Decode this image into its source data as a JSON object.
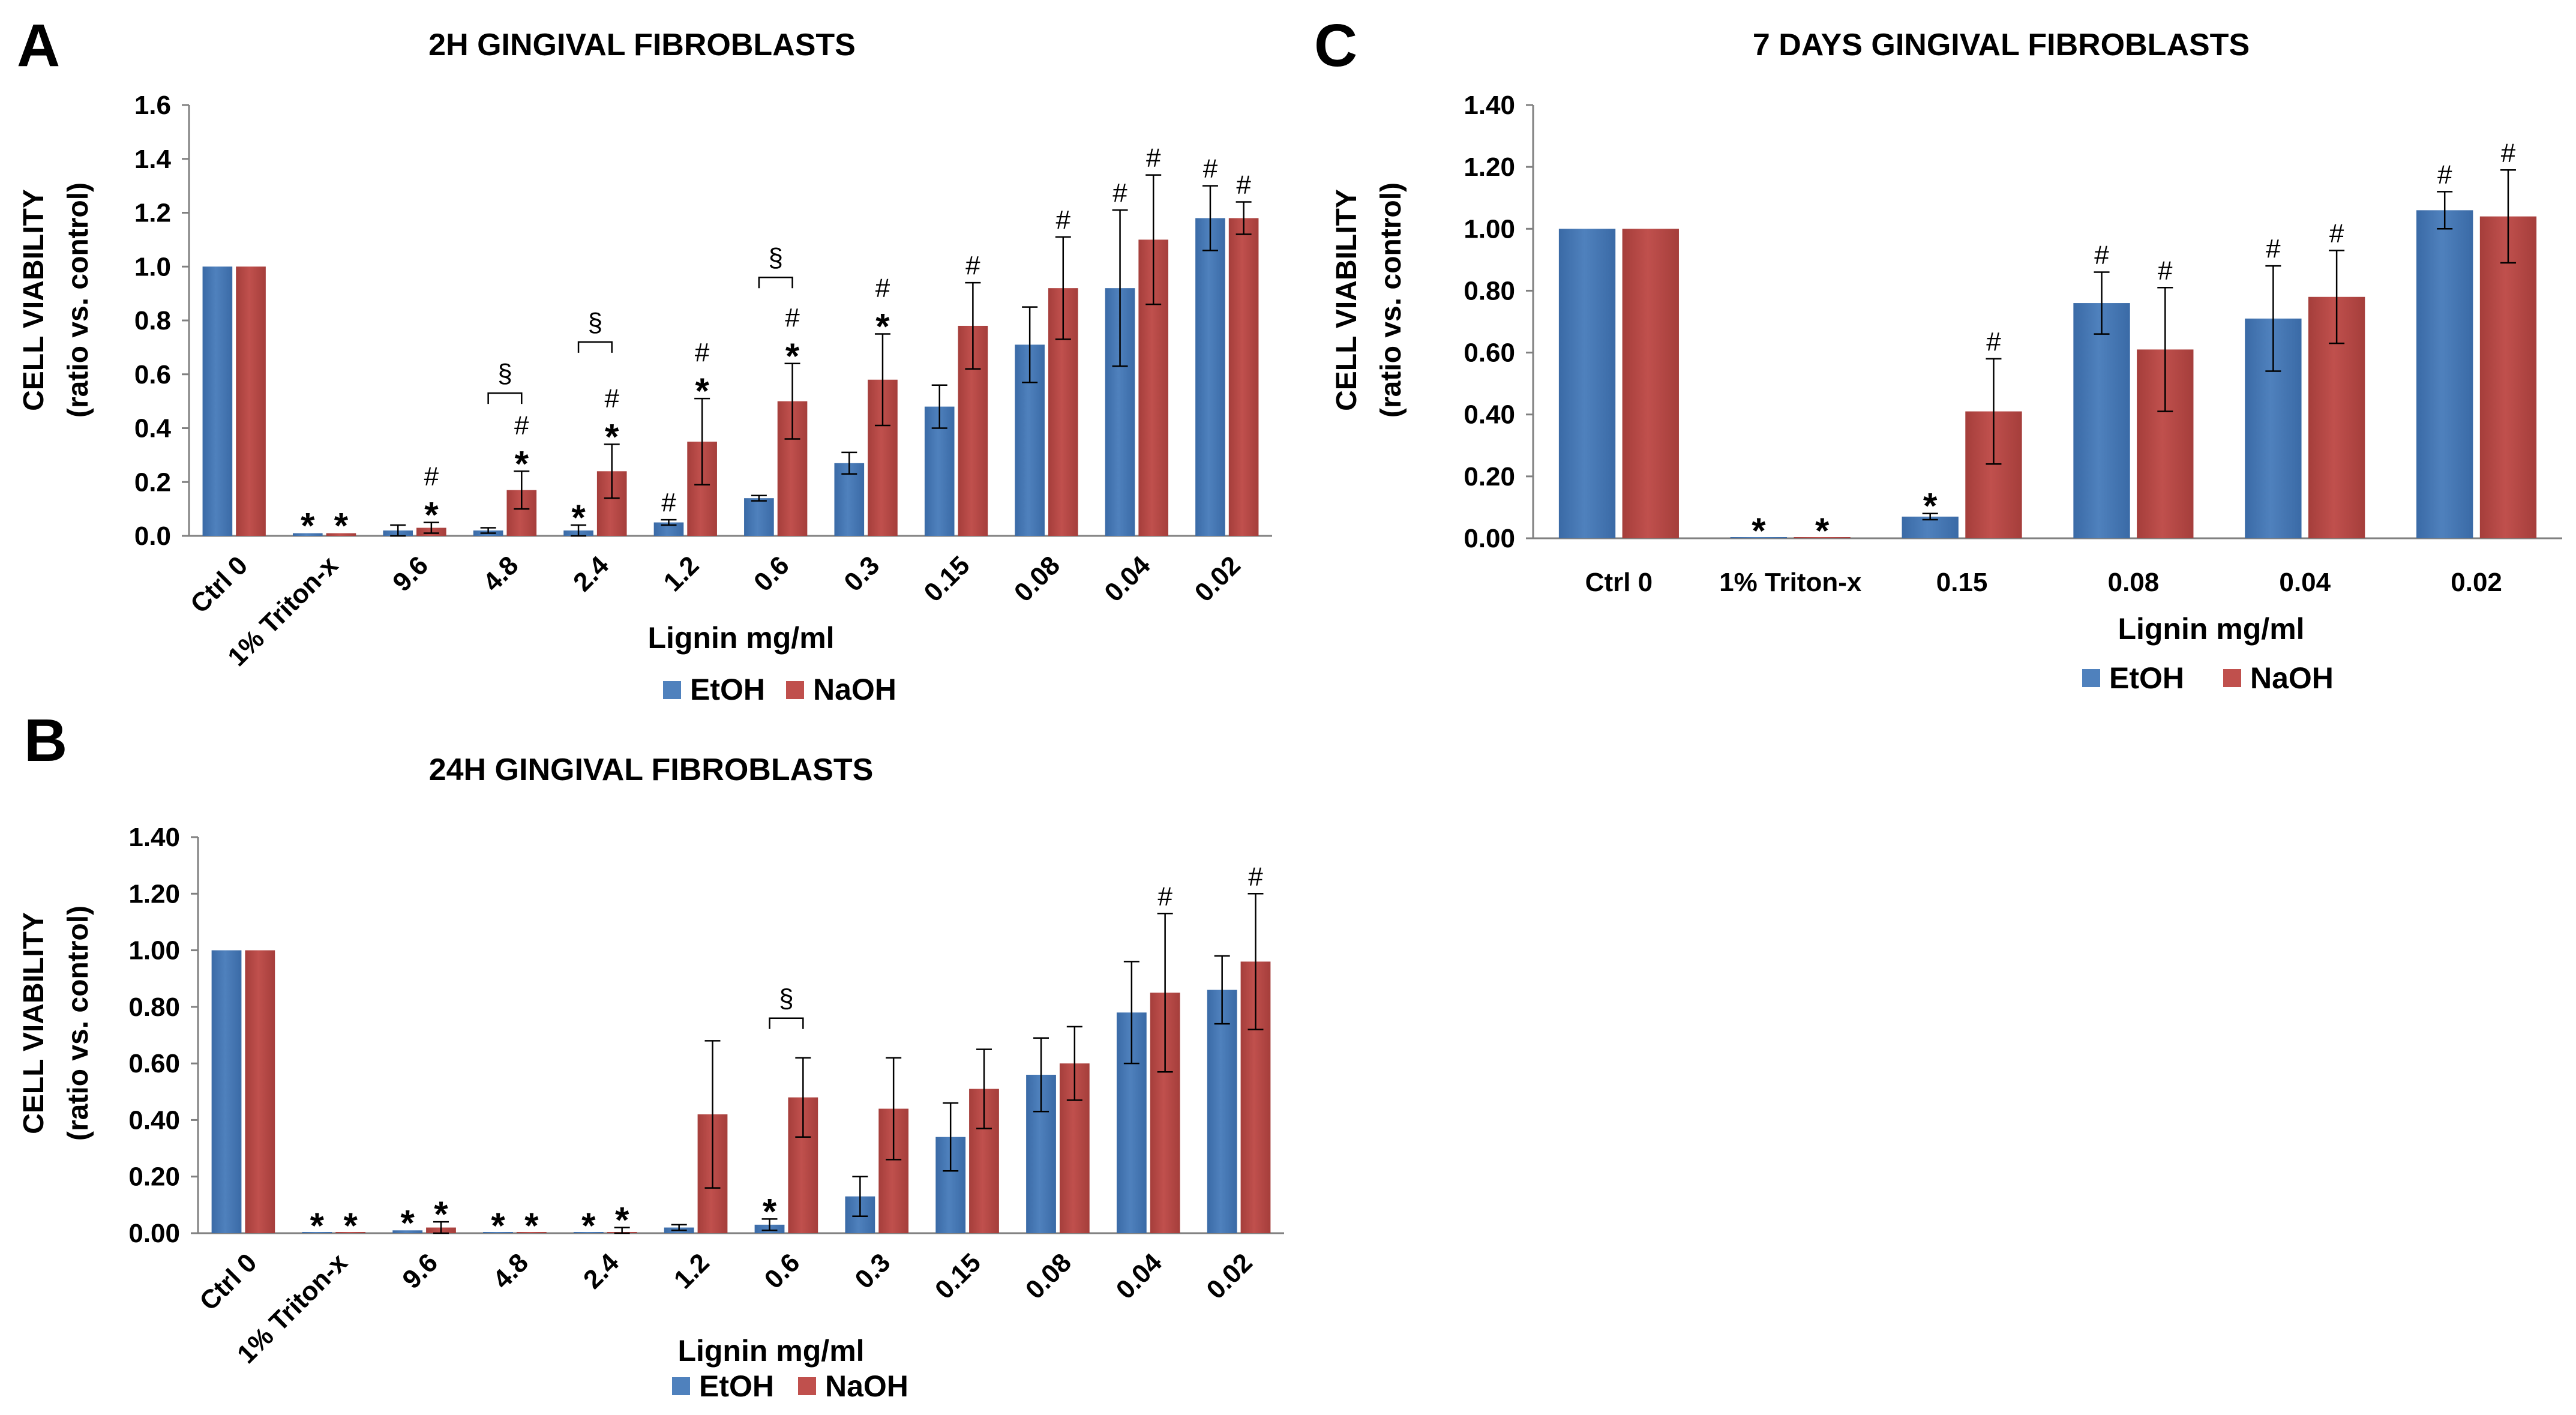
{
  "colors": {
    "etoh": "#4f81bd",
    "etoh_dark": "#3a6aa6",
    "naoh": "#c0504d",
    "naoh_dark": "#a53e3b",
    "axis": "#808080"
  },
  "chart_data": [
    {
      "id": "A",
      "panel_letter": "A",
      "type": "bar",
      "title": "2H GINGIVAL FIBROBLASTS",
      "ylabel_line1": "CELL VIABILITY",
      "ylabel_line2": "(ratio vs. control)",
      "xlabel": "Lignin mg/ml",
      "ylim": [
        0,
        1.6
      ],
      "yticks": [
        "0.0",
        "0.2",
        "0.4",
        "0.6",
        "0.8",
        "1.0",
        "1.2",
        "1.4",
        "1.6"
      ],
      "categories": [
        "Ctrl 0",
        "1% Triton-x",
        "9.6",
        "4.8",
        "2.4",
        "1.2",
        "0.6",
        "0.3",
        "0.15",
        "0.08",
        "0.04",
        "0.02"
      ],
      "legend": [
        "EtOH",
        "NaOH"
      ],
      "series": [
        {
          "name": "EtOH",
          "values": [
            1.0,
            0.01,
            0.02,
            0.02,
            0.02,
            0.05,
            0.14,
            0.27,
            0.48,
            0.71,
            0.92,
            1.18
          ],
          "errors": [
            0.0,
            0.0,
            0.02,
            0.01,
            0.02,
            0.01,
            0.01,
            0.04,
            0.08,
            0.14,
            0.29,
            0.12
          ]
        },
        {
          "name": "NaOH",
          "values": [
            1.0,
            0.01,
            0.03,
            0.17,
            0.24,
            0.35,
            0.5,
            0.58,
            0.78,
            0.92,
            1.1,
            1.18
          ],
          "errors": [
            0.0,
            0.0,
            0.02,
            0.07,
            0.1,
            0.16,
            0.14,
            0.17,
            0.16,
            0.19,
            0.24,
            0.06
          ]
        }
      ],
      "annotations": [
        {
          "cat": 1,
          "series": 0,
          "labels": [
            "*"
          ]
        },
        {
          "cat": 1,
          "series": 1,
          "labels": [
            "*"
          ]
        },
        {
          "cat": 2,
          "series": 1,
          "labels": [
            "*",
            "#"
          ]
        },
        {
          "cat": 3,
          "series": 1,
          "labels": [
            "*",
            "#"
          ]
        },
        {
          "cat": 4,
          "series": 0,
          "labels": [
            "*"
          ]
        },
        {
          "cat": 4,
          "series": 1,
          "labels": [
            "*",
            "#"
          ]
        },
        {
          "cat": 5,
          "series": 0,
          "labels": [
            "#"
          ]
        },
        {
          "cat": 5,
          "series": 1,
          "labels": [
            "*",
            "#"
          ]
        },
        {
          "cat": 6,
          "series": 1,
          "labels": [
            "*",
            "#"
          ]
        },
        {
          "cat": 7,
          "series": 1,
          "labels": [
            "*",
            "#"
          ]
        },
        {
          "cat": 8,
          "series": 1,
          "labels": [
            "#"
          ]
        },
        {
          "cat": 9,
          "series": 1,
          "labels": [
            "#"
          ]
        },
        {
          "cat": 10,
          "series": 0,
          "labels": [
            "#"
          ]
        },
        {
          "cat": 10,
          "series": 1,
          "labels": [
            "#"
          ]
        },
        {
          "cat": 11,
          "series": 0,
          "labels": [
            "#"
          ]
        },
        {
          "cat": 11,
          "series": 1,
          "labels": [
            "#"
          ]
        }
      ],
      "brackets": [
        {
          "cat": 3,
          "label": "§",
          "y": 0.53
        },
        {
          "cat": 4,
          "label": "§",
          "y": 0.72
        },
        {
          "cat": 6,
          "label": "§",
          "y": 0.96
        }
      ]
    },
    {
      "id": "B",
      "panel_letter": "B",
      "type": "bar",
      "title": "24H GINGIVAL FIBROBLASTS",
      "ylabel_line1": "CELL VIABILITY",
      "ylabel_line2": "(ratio vs. control)",
      "xlabel": "Lignin mg/ml",
      "ylim": [
        0,
        1.4
      ],
      "yticks": [
        "0.00",
        "0.20",
        "0.40",
        "0.60",
        "0.80",
        "1.00",
        "1.20",
        "1.40"
      ],
      "categories": [
        "Ctrl 0",
        "1% Triton-x",
        "9.6",
        "4.8",
        "2.4",
        "1.2",
        "0.6",
        "0.3",
        "0.15",
        "0.08",
        "0.04",
        "0.02"
      ],
      "legend": [
        "EtOH",
        "NaOH"
      ],
      "series": [
        {
          "name": "EtOH",
          "values": [
            1.0,
            0.0,
            0.01,
            0.0,
            0.0,
            0.02,
            0.03,
            0.13,
            0.34,
            0.56,
            0.78,
            0.86
          ],
          "errors": [
            0.0,
            0.0,
            0.0,
            0.0,
            0.0,
            0.01,
            0.02,
            0.07,
            0.12,
            0.13,
            0.18,
            0.12
          ]
        },
        {
          "name": "NaOH",
          "values": [
            1.0,
            0.0,
            0.02,
            0.0,
            0.0,
            0.42,
            0.48,
            0.44,
            0.51,
            0.6,
            0.85,
            0.96
          ],
          "errors": [
            0.0,
            0.0,
            0.02,
            0.0,
            0.02,
            0.26,
            0.14,
            0.18,
            0.14,
            0.13,
            0.28,
            0.24
          ]
        }
      ],
      "annotations": [
        {
          "cat": 1,
          "series": 0,
          "labels": [
            "*"
          ]
        },
        {
          "cat": 1,
          "series": 1,
          "labels": [
            "*"
          ]
        },
        {
          "cat": 2,
          "series": 0,
          "labels": [
            "*"
          ]
        },
        {
          "cat": 2,
          "series": 1,
          "labels": [
            "*"
          ]
        },
        {
          "cat": 3,
          "series": 0,
          "labels": [
            "*"
          ]
        },
        {
          "cat": 3,
          "series": 1,
          "labels": [
            "*"
          ]
        },
        {
          "cat": 4,
          "series": 0,
          "labels": [
            "*"
          ]
        },
        {
          "cat": 4,
          "series": 1,
          "labels": [
            "*"
          ]
        },
        {
          "cat": 6,
          "series": 0,
          "labels": [
            "*"
          ]
        },
        {
          "cat": 10,
          "series": 1,
          "labels": [
            "#"
          ]
        },
        {
          "cat": 11,
          "series": 1,
          "labels": [
            "#"
          ]
        }
      ],
      "brackets": [
        {
          "cat": 6,
          "label": "§",
          "y": 0.76
        }
      ]
    },
    {
      "id": "C",
      "panel_letter": "C",
      "type": "bar",
      "title": "7 DAYS GINGIVAL FIBROBLASTS",
      "ylabel_line1": "CELL VIABILITY",
      "ylabel_line2": "(ratio vs. control)",
      "xlabel": "Lignin mg/ml",
      "ylim": [
        0,
        1.4
      ],
      "yticks": [
        "0.00",
        "0.20",
        "0.40",
        "0.60",
        "0.80",
        "1.00",
        "1.20",
        "1.40"
      ],
      "categories": [
        "Ctrl 0",
        "1% Triton-x",
        "0.15",
        "0.08",
        "0.04",
        "0.02"
      ],
      "legend": [
        "EtOH",
        "NaOH"
      ],
      "series": [
        {
          "name": "EtOH",
          "values": [
            1.0,
            0.0,
            0.07,
            0.76,
            0.71,
            1.06
          ],
          "errors": [
            0.0,
            0.0,
            0.01,
            0.1,
            0.17,
            0.06
          ]
        },
        {
          "name": "NaOH",
          "values": [
            1.0,
            0.0,
            0.41,
            0.61,
            0.78,
            1.04
          ],
          "errors": [
            0.0,
            0.0,
            0.17,
            0.2,
            0.15,
            0.15
          ]
        }
      ],
      "annotations": [
        {
          "cat": 1,
          "series": 0,
          "labels": [
            "*"
          ]
        },
        {
          "cat": 1,
          "series": 1,
          "labels": [
            "*"
          ]
        },
        {
          "cat": 2,
          "series": 0,
          "labels": [
            "*"
          ]
        },
        {
          "cat": 2,
          "series": 1,
          "labels": [
            "#"
          ]
        },
        {
          "cat": 3,
          "series": 0,
          "labels": [
            "#"
          ]
        },
        {
          "cat": 3,
          "series": 1,
          "labels": [
            "#"
          ]
        },
        {
          "cat": 4,
          "series": 0,
          "labels": [
            "#"
          ]
        },
        {
          "cat": 4,
          "series": 1,
          "labels": [
            "#"
          ]
        },
        {
          "cat": 5,
          "series": 0,
          "labels": [
            "#"
          ]
        },
        {
          "cat": 5,
          "series": 1,
          "labels": [
            "#"
          ]
        }
      ],
      "brackets": []
    }
  ]
}
